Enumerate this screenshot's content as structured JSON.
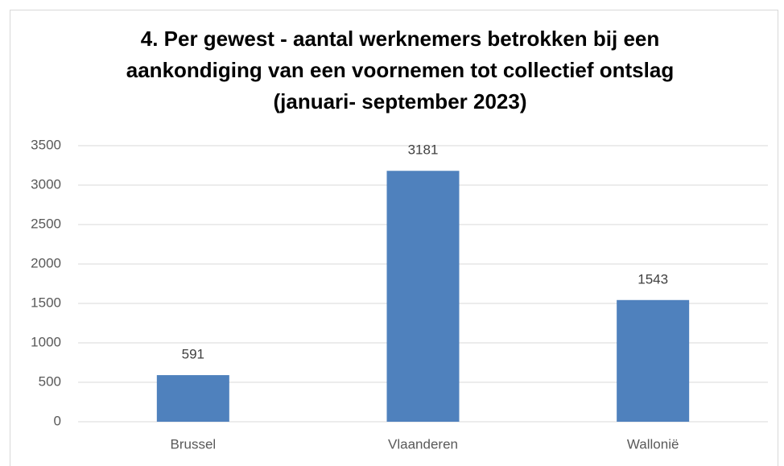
{
  "chart_data": {
    "type": "bar",
    "title": [
      "4. Per gewest - aantal werknemers betrokken bij een",
      "aankondiging van een voornemen tot collectief ontslag",
      "(januari- september 2023)"
    ],
    "categories": [
      "Brussel",
      "Vlaanderen",
      "Wallonië"
    ],
    "values": [
      591,
      3181,
      1543
    ],
    "color": "#4f81bd",
    "ylim": [
      0,
      3500
    ],
    "yticks": [
      0,
      500,
      1000,
      1500,
      2000,
      2500,
      3000,
      3500
    ],
    "grid": true
  }
}
